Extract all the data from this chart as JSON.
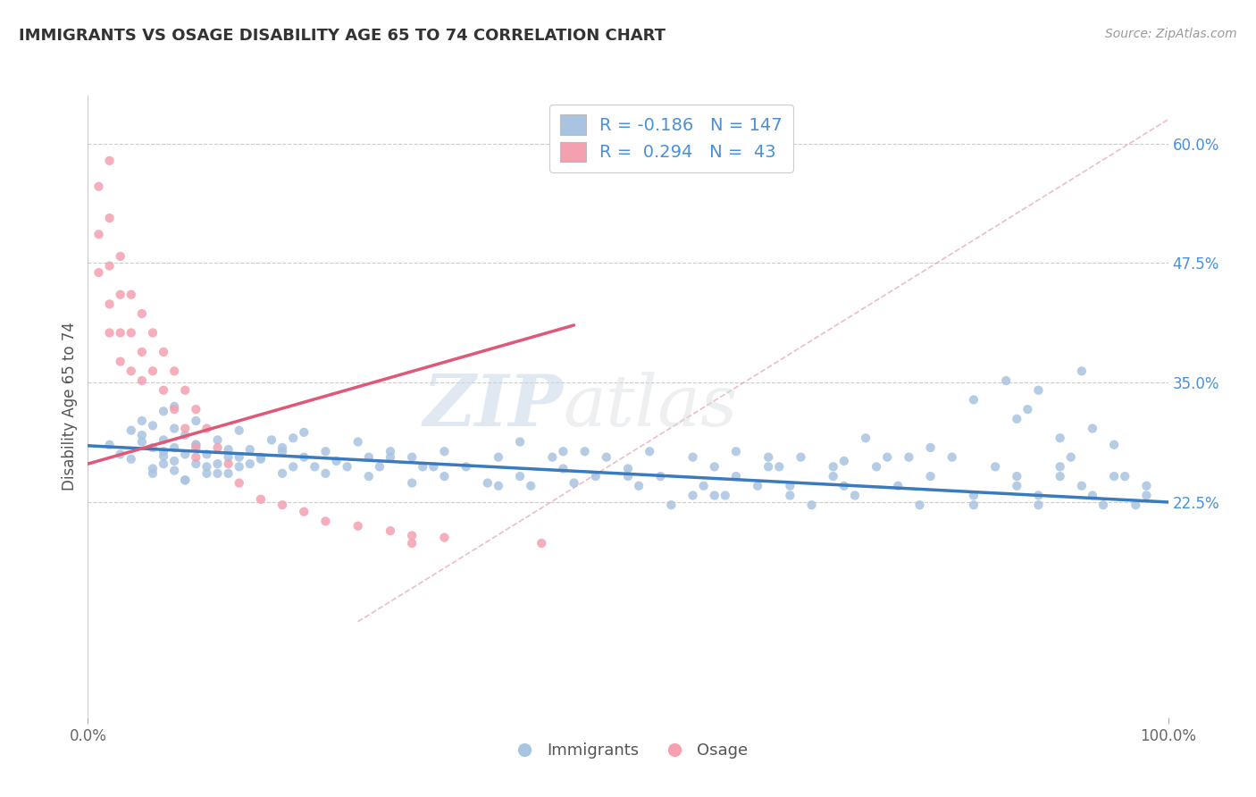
{
  "title": "IMMIGRANTS VS OSAGE DISABILITY AGE 65 TO 74 CORRELATION CHART",
  "source": "Source: ZipAtlas.com",
  "ylabel": "Disability Age 65 to 74",
  "xlim": [
    0.0,
    1.0
  ],
  "ylim": [
    0.0,
    0.65
  ],
  "ytick_labels_right": [
    "60.0%",
    "47.5%",
    "35.0%",
    "22.5%"
  ],
  "ytick_vals_right": [
    0.6,
    0.475,
    0.35,
    0.225
  ],
  "blue_color": "#a8c4e0",
  "pink_color": "#f4a0b0",
  "blue_line_color": "#3a7abf",
  "pink_line_color": "#e05878",
  "legend_blue_R": "-0.186",
  "legend_blue_N": "147",
  "legend_pink_R": "0.294",
  "legend_pink_N": "43",
  "watermark_zip": "ZIP",
  "watermark_atlas": "atlas",
  "blue_line_x0": 0.0,
  "blue_line_y0": 0.284,
  "blue_line_x1": 1.0,
  "blue_line_y1": 0.225,
  "pink_line_x0": 0.0,
  "pink_line_y0": 0.265,
  "pink_line_x1": 0.45,
  "pink_line_y1": 0.41,
  "diag_line_x0": 0.25,
  "diag_line_y0": 0.1,
  "diag_line_x1": 1.0,
  "diag_line_y1": 0.625,
  "blue_scatter_x": [
    0.02,
    0.03,
    0.04,
    0.04,
    0.05,
    0.05,
    0.06,
    0.06,
    0.06,
    0.07,
    0.07,
    0.07,
    0.07,
    0.08,
    0.08,
    0.08,
    0.08,
    0.09,
    0.09,
    0.09,
    0.1,
    0.1,
    0.1,
    0.11,
    0.11,
    0.12,
    0.12,
    0.13,
    0.13,
    0.14,
    0.14,
    0.15,
    0.15,
    0.16,
    0.17,
    0.18,
    0.18,
    0.19,
    0.19,
    0.2,
    0.2,
    0.21,
    0.22,
    0.23,
    0.24,
    0.25,
    0.26,
    0.26,
    0.27,
    0.28,
    0.3,
    0.3,
    0.31,
    0.33,
    0.33,
    0.35,
    0.37,
    0.38,
    0.4,
    0.4,
    0.41,
    0.43,
    0.44,
    0.45,
    0.46,
    0.47,
    0.48,
    0.5,
    0.51,
    0.52,
    0.53,
    0.54,
    0.56,
    0.57,
    0.58,
    0.59,
    0.6,
    0.62,
    0.63,
    0.65,
    0.66,
    0.67,
    0.69,
    0.7,
    0.71,
    0.73,
    0.75,
    0.77,
    0.78,
    0.8,
    0.82,
    0.84,
    0.86,
    0.88,
    0.9,
    0.91,
    0.93,
    0.95,
    0.97,
    0.98,
    0.05,
    0.06,
    0.07,
    0.08,
    0.09,
    0.1,
    0.11,
    0.12,
    0.13,
    0.14,
    0.16,
    0.18,
    0.22,
    0.28,
    0.32,
    0.38,
    0.44,
    0.5,
    0.58,
    0.64,
    0.7,
    0.76,
    0.82,
    0.86,
    0.88,
    0.9,
    0.92,
    0.94,
    0.96,
    0.98,
    0.85,
    0.88,
    0.92,
    0.87,
    0.93,
    0.82,
    0.9,
    0.95,
    0.86,
    0.78,
    0.74,
    0.72,
    0.69,
    0.65,
    0.63,
    0.6,
    0.56
  ],
  "blue_scatter_y": [
    0.285,
    0.275,
    0.3,
    0.27,
    0.295,
    0.31,
    0.255,
    0.282,
    0.305,
    0.265,
    0.29,
    0.273,
    0.32,
    0.258,
    0.282,
    0.302,
    0.325,
    0.248,
    0.275,
    0.295,
    0.265,
    0.285,
    0.31,
    0.255,
    0.275,
    0.265,
    0.29,
    0.255,
    0.28,
    0.272,
    0.3,
    0.265,
    0.28,
    0.27,
    0.29,
    0.255,
    0.278,
    0.262,
    0.292,
    0.272,
    0.298,
    0.262,
    0.278,
    0.268,
    0.262,
    0.288,
    0.252,
    0.272,
    0.262,
    0.278,
    0.245,
    0.272,
    0.262,
    0.252,
    0.278,
    0.262,
    0.245,
    0.272,
    0.252,
    0.288,
    0.242,
    0.272,
    0.26,
    0.245,
    0.278,
    0.252,
    0.272,
    0.26,
    0.242,
    0.278,
    0.252,
    0.222,
    0.272,
    0.242,
    0.262,
    0.232,
    0.278,
    0.242,
    0.262,
    0.232,
    0.272,
    0.222,
    0.252,
    0.268,
    0.232,
    0.262,
    0.242,
    0.222,
    0.252,
    0.272,
    0.232,
    0.262,
    0.242,
    0.222,
    0.252,
    0.272,
    0.232,
    0.252,
    0.222,
    0.242,
    0.288,
    0.26,
    0.278,
    0.268,
    0.248,
    0.285,
    0.262,
    0.255,
    0.272,
    0.262,
    0.272,
    0.282,
    0.255,
    0.272,
    0.262,
    0.242,
    0.278,
    0.252,
    0.232,
    0.262,
    0.242,
    0.272,
    0.222,
    0.252,
    0.232,
    0.262,
    0.242,
    0.222,
    0.252,
    0.232,
    0.352,
    0.342,
    0.362,
    0.322,
    0.302,
    0.332,
    0.292,
    0.285,
    0.312,
    0.282,
    0.272,
    0.292,
    0.262,
    0.242,
    0.272,
    0.252,
    0.232
  ],
  "pink_scatter_x": [
    0.01,
    0.01,
    0.01,
    0.02,
    0.02,
    0.02,
    0.02,
    0.02,
    0.03,
    0.03,
    0.03,
    0.03,
    0.04,
    0.04,
    0.04,
    0.05,
    0.05,
    0.05,
    0.06,
    0.06,
    0.07,
    0.07,
    0.08,
    0.08,
    0.09,
    0.09,
    0.1,
    0.1,
    0.11,
    0.12,
    0.13,
    0.14,
    0.16,
    0.18,
    0.2,
    0.22,
    0.25,
    0.28,
    0.3,
    0.33,
    0.42,
    0.1,
    0.3
  ],
  "pink_scatter_y": [
    0.555,
    0.505,
    0.465,
    0.582,
    0.522,
    0.472,
    0.432,
    0.402,
    0.482,
    0.442,
    0.402,
    0.372,
    0.442,
    0.402,
    0.362,
    0.422,
    0.382,
    0.352,
    0.402,
    0.362,
    0.382,
    0.342,
    0.362,
    0.322,
    0.342,
    0.302,
    0.322,
    0.282,
    0.302,
    0.282,
    0.265,
    0.245,
    0.228,
    0.222,
    0.215,
    0.205,
    0.2,
    0.195,
    0.19,
    0.188,
    0.182,
    0.272,
    0.182
  ]
}
